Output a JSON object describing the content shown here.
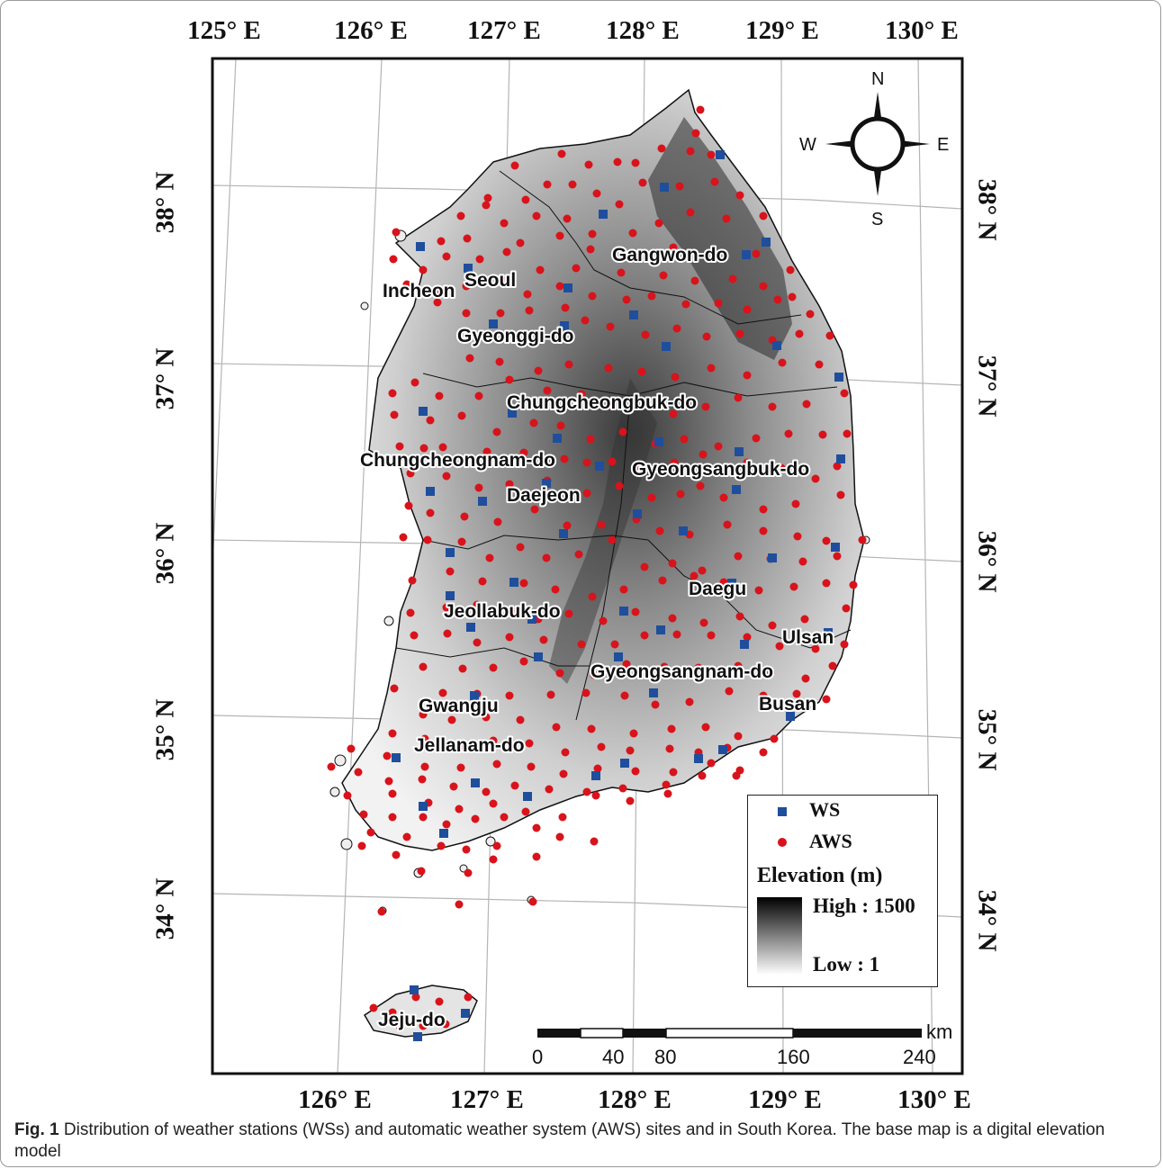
{
  "figure": {
    "caption_label": "Fig. 1",
    "caption_text": "Distribution of weather stations (WSs) and automatic weather system (AWS) sites and in South Korea. The base map is a digital elevation model"
  },
  "axes": {
    "top_labels": [
      "125° E",
      "126° E",
      "127° E",
      "128° E",
      "129° E",
      "130° E"
    ],
    "bottom_labels": [
      "126° E",
      "127° E",
      "128° E",
      "129° E",
      "130° E"
    ],
    "left_labels": [
      "38° N",
      "37° N",
      "36° N",
      "35° N",
      "34° N"
    ],
    "right_labels": [
      "38° N",
      "37° N",
      "36° N",
      "35° N",
      "34° N"
    ]
  },
  "compass": {
    "n": "N",
    "s": "S",
    "e": "E",
    "w": "W"
  },
  "places": [
    "Gangwon-do",
    "Seoul",
    "Incheon",
    "Gyeonggi-do",
    "Chungcheongbuk-do",
    "Chungcheongnam-do",
    "Gyeongsangbuk-do",
    "Daejeon",
    "Daegu",
    "Jeollabuk-do",
    "Ulsan",
    "Gyeongsangnam-do",
    "Gwangju",
    "Busan",
    "Jellanam-do",
    "Jeju-do"
  ],
  "legend": {
    "ws": "WS",
    "aws": "AWS",
    "elevation_title": "Elevation (m)",
    "high": "High : 1500",
    "low": "Low : 1",
    "elevation_range_m": [
      1,
      1500
    ]
  },
  "scale_bar": {
    "unit": "km",
    "ticks": [
      "0",
      "40",
      "80",
      "160",
      "240"
    ]
  },
  "colors": {
    "ws": "#1f4e9c",
    "aws": "#d8131b",
    "grid": "#b5b5b5",
    "border": "#111111"
  }
}
